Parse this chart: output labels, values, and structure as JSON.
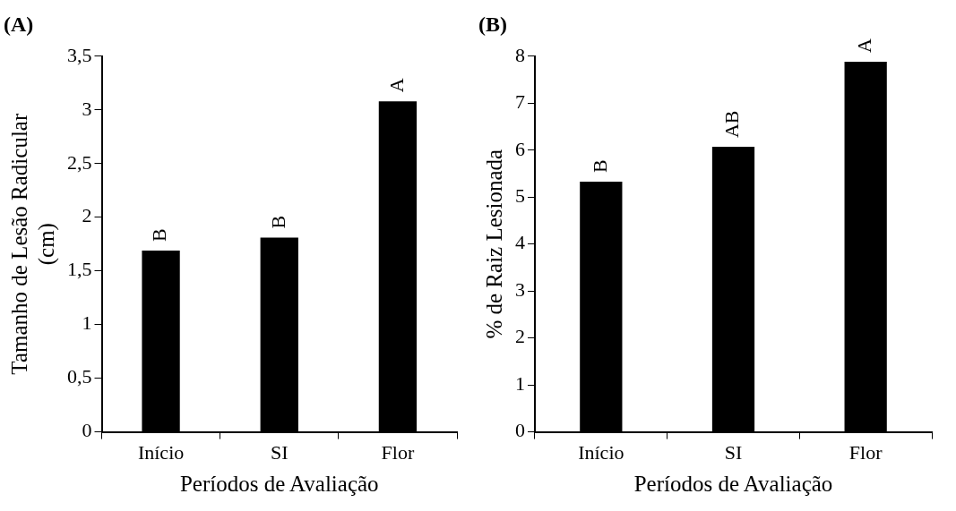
{
  "chart_data": [
    {
      "type": "bar",
      "title": "(A)",
      "xlabel": "Períodos de Avaliação",
      "ylabel": "Tamanho de Lesão Radicular (cm)",
      "categories": [
        "Início",
        "SI",
        "Flor"
      ],
      "values": [
        1.69,
        1.81,
        3.08
      ],
      "color": "#000000",
      "ylim": [
        0,
        3.5
      ],
      "yticks": [
        0,
        {
          "value": 0.5,
          "label": "0,5"
        },
        1,
        {
          "value": 1.5,
          "label": "1,5"
        },
        2,
        {
          "value": 2.5,
          "label": "2,5"
        },
        3,
        {
          "value": 3.5,
          "label": "3,5"
        }
      ],
      "grid": false,
      "legend": false,
      "annotations": [
        {
          "text": "B",
          "x": "Início",
          "y": 1.69
        },
        {
          "text": "B",
          "x": "SI",
          "y": 1.81
        },
        {
          "text": "A",
          "x": "Flor",
          "y": 3.08
        }
      ]
    },
    {
      "type": "bar",
      "title": "(B)",
      "xlabel": "Períodos de Avaliação",
      "ylabel": "% de Raiz Lesionada",
      "categories": [
        "Início",
        "SI",
        "Flor"
      ],
      "values": [
        5.33,
        6.07,
        7.88
      ],
      "color": "#000000",
      "ylim": [
        0,
        8
      ],
      "yticks": [
        0,
        1,
        2,
        3,
        4,
        5,
        6,
        7,
        8
      ],
      "grid": false,
      "legend": false,
      "annotations": [
        {
          "text": "B",
          "x": "Início",
          "y": 5.33
        },
        {
          "text": "AB",
          "x": "SI",
          "y": 6.07
        },
        {
          "text": "A",
          "x": "Flor",
          "y": 7.88
        }
      ]
    }
  ]
}
